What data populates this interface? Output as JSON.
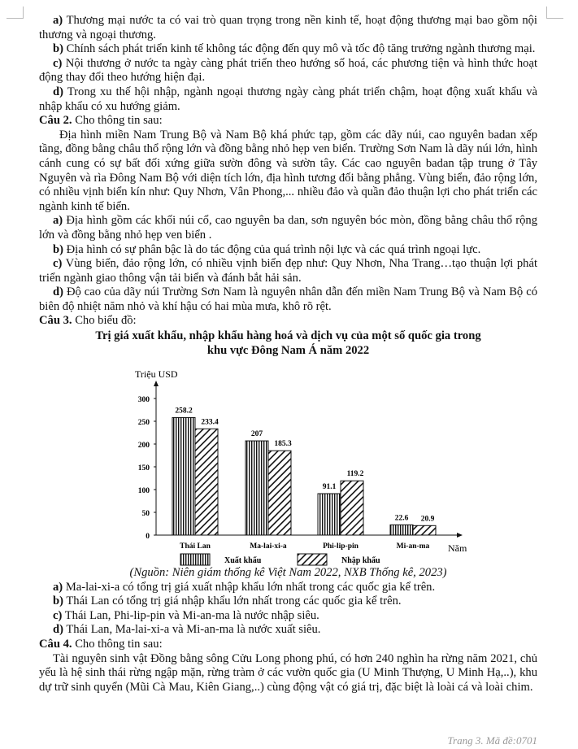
{
  "q1_options": [
    {
      "label": "a)",
      "text": " Thương mại nước ta có vai trò quan trọng trong nền kinh tế, hoạt động thương mại bao gồm nội thương và ngoại thương."
    },
    {
      "label": "b)",
      "text": " Chính sách phát triển kinh tế không tác động đến quy mô và tốc độ tăng trưởng ngành thương mại."
    },
    {
      "label": "c)",
      "text": " Nội thương ở nước ta ngày càng phát triển theo hướng số hoá, các phương tiện và hình thức hoạt động thay đổi theo hướng hiện đại."
    },
    {
      "label": "d)",
      "text": " Trong xu thế hội nhập, ngành ngoại thương ngày càng phát triển chậm, hoạt động xuất khẩu và nhập khẩu có xu hướng giảm."
    }
  ],
  "q2": {
    "label": "Câu 2.",
    "prompt": " Cho thông tin sau:",
    "passage": "Địa hình miền Nam Trung Bộ và Nam Bộ khá phức tạp, gồm các dãy núi, cao nguyên badan xếp tầng, đồng bằng châu thổ rộng lớn và đồng bằng nhỏ hẹp ven biển. Trường Sơn Nam là dãy núi lớn, hình cánh cung có sự bất đối xứng giữa sườn đông và sườn tây. Các cao nguyên badan tập trung ở Tây Nguyên và rìa Đông Nam Bộ với diện tích lớn, địa hình tương đối bằng phẳng. Vùng biển, đảo rộng lớn, có nhiều vịnh biển kín như: Quy Nhơn, Vân Phong,... nhiều đảo và quần đảo thuận lợi cho phát triển các ngành kinh tế biển.",
    "options": [
      {
        "label": "a)",
        "text": " Địa hình gồm các khối núi cổ, cao nguyên ba dan, sơn nguyên bóc mòn, đồng bằng châu thổ rộng lớn và đồng bằng nhỏ hẹp ven biển ."
      },
      {
        "label": "b)",
        "text": " Địa hình có sự phân bậc là do tác động của quá trình nội lực và các quá trình ngoại lực."
      },
      {
        "label": "c)",
        "text": " Vùng biển, đảo rộng lớn, có nhiều vịnh biển đẹp như: Quy Nhơn, Nha Trang…tạo thuận lợi phát triển ngành giao thông vận tải biển và đánh bắt hải sản."
      },
      {
        "label": "d)",
        "text": " Độ cao của dãy núi Trường Sơn Nam là nguyên nhân dẫn đến miền Nam Trung Bộ và Nam Bộ có biên độ nhiệt năm nhỏ và khí hậu có hai mùa mưa, khô rõ rệt."
      }
    ]
  },
  "q3": {
    "label": "Câu 3.",
    "prompt": " Cho biểu đồ:",
    "source": "(Nguồn: Niên giám thống kê Việt Nam 2022, NXB Thống kê, 2023)",
    "options": [
      {
        "label": "a)",
        "text": " Ma-lai-xi-a có tổng trị giá xuất nhập khẩu lớn nhất trong các quốc gia kể trên."
      },
      {
        "label": "b)",
        "text": " Thái Lan có tổng trị giá nhập khẩu lớn nhất trong các quốc gia kể trên."
      },
      {
        "label": "c)",
        "text": " Thái Lan, Phi-lip-pin và Mi-an-ma là nước nhập siêu."
      },
      {
        "label": "d)",
        "text": " Thái Lan, Ma-lai-xi-a và Mi-an-ma là nước xuất siêu."
      }
    ]
  },
  "q4": {
    "label": "Câu 4.",
    "prompt": " Cho thông tin sau:",
    "passage": "Tài nguyên sinh vật Đồng bằng sông Cửu Long phong phú, có hơn 240 nghìn ha rừng năm 2021, chủ yếu là hệ sinh thái rừng ngập mặn, rừng tràm ở các vườn quốc gia (U Minh Thượng, U Minh Hạ,..), khu dự trữ sinh quyển (Mũi Cà Mau, Kiên Giang,..) cùng động vật có giá trị, đặc biệt là loài cá và loài chim."
  },
  "footer": "Trang 3. Mã đề:0701",
  "chart_data": {
    "type": "bar",
    "title": "Trị giá xuất khẩu, nhập khẩu hàng hoá và dịch vụ của một số quốc gia trong khu vực Đông Nam Á năm 2022",
    "title_lines": [
      "Trị giá xuất khẩu, nhập khẩu hàng hoá và dịch vụ của một số quốc gia trong",
      "khu vực Đông Nam Á năm 2022"
    ],
    "ylabel": "Triệu USD",
    "xlabel": "Năm",
    "categories": [
      "Thái Lan",
      "Ma-lai-xi-a",
      "Phi-lip-pin",
      "Mi-an-ma"
    ],
    "series": [
      {
        "name": "Xuất khẩu",
        "values": [
          258.2,
          207,
          91.1,
          22.6
        ],
        "pattern": "vertical-lines"
      },
      {
        "name": "Nhập khẩu",
        "values": [
          233.4,
          185.3,
          119.2,
          20.9
        ],
        "pattern": "diagonal-hatch"
      }
    ],
    "value_labels": [
      [
        "258.2",
        "207",
        "91.1",
        "22.6"
      ],
      [
        "233.4",
        "185.3",
        "119.2",
        "20.9"
      ]
    ],
    "yticks": [
      "0",
      "50",
      "100",
      "150",
      "200",
      "250",
      "300"
    ],
    "ylim": [
      0,
      300
    ],
    "grid": false,
    "legend": "bottom"
  }
}
